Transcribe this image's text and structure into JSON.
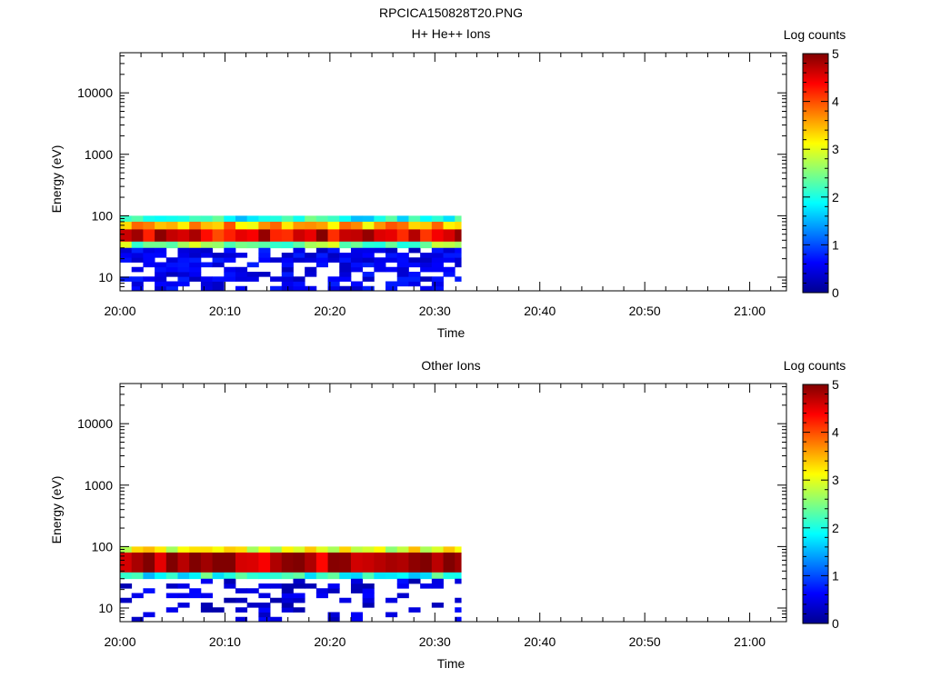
{
  "figure_title": "RPCICA150828T20.PNG",
  "chart_data": [
    {
      "type": "heatmap",
      "title": "H+ He++ Ions",
      "xlabel": "Time",
      "ylabel": "Energy (eV)",
      "x_tick_labels": [
        "20:00",
        "20:10",
        "20:20",
        "20:30",
        "20:40",
        "20:50",
        "21:00"
      ],
      "x_range_minutes": [
        0,
        63.5
      ],
      "y_scale": "log",
      "y_range": [
        6,
        45000
      ],
      "y_tick_labels": [
        "10",
        "100",
        "1000",
        "10000"
      ],
      "data_time_range_minutes": [
        0,
        32.5
      ],
      "colorbar": {
        "label": "Log counts",
        "range": [
          0,
          5
        ],
        "tick_labels": [
          "0",
          "1",
          "2",
          "3",
          "4",
          "5"
        ],
        "colormap": "jet"
      },
      "energy_band_levels": [
        {
          "energy_range_eV": [
            80,
            100
          ],
          "log_counts": 2.0
        },
        {
          "energy_range_eV": [
            60,
            80
          ],
          "log_counts": 3.5
        },
        {
          "energy_range_eV": [
            38,
            60
          ],
          "log_counts": 4.5
        },
        {
          "energy_range_eV": [
            30,
            38
          ],
          "log_counts": 2.5
        },
        {
          "energy_range_eV": [
            6,
            30
          ],
          "log_counts": 0.3
        }
      ],
      "grid": false
    },
    {
      "type": "heatmap",
      "title": "Other Ions",
      "xlabel": "Time",
      "ylabel": "Energy (eV)",
      "x_tick_labels": [
        "20:00",
        "20:10",
        "20:20",
        "20:30",
        "20:40",
        "20:50",
        "21:00"
      ],
      "x_range_minutes": [
        0,
        63.5
      ],
      "y_scale": "log",
      "y_range": [
        6,
        45000
      ],
      "y_tick_labels": [
        "10",
        "100",
        "1000",
        "10000"
      ],
      "data_time_range_minutes": [
        0,
        32.5
      ],
      "colorbar": {
        "label": "Log counts",
        "range": [
          0,
          5
        ],
        "tick_labels": [
          "0",
          "1",
          "2",
          "3",
          "4",
          "5"
        ],
        "colormap": "jet"
      },
      "energy_band_levels": [
        {
          "energy_range_eV": [
            80,
            100
          ],
          "log_counts": 3.0
        },
        {
          "energy_range_eV": [
            38,
            80
          ],
          "log_counts": 4.8
        },
        {
          "energy_range_eV": [
            30,
            38
          ],
          "log_counts": 2.0
        },
        {
          "energy_range_eV": [
            6,
            30
          ],
          "log_counts": 0.2
        }
      ],
      "grid": false
    }
  ]
}
